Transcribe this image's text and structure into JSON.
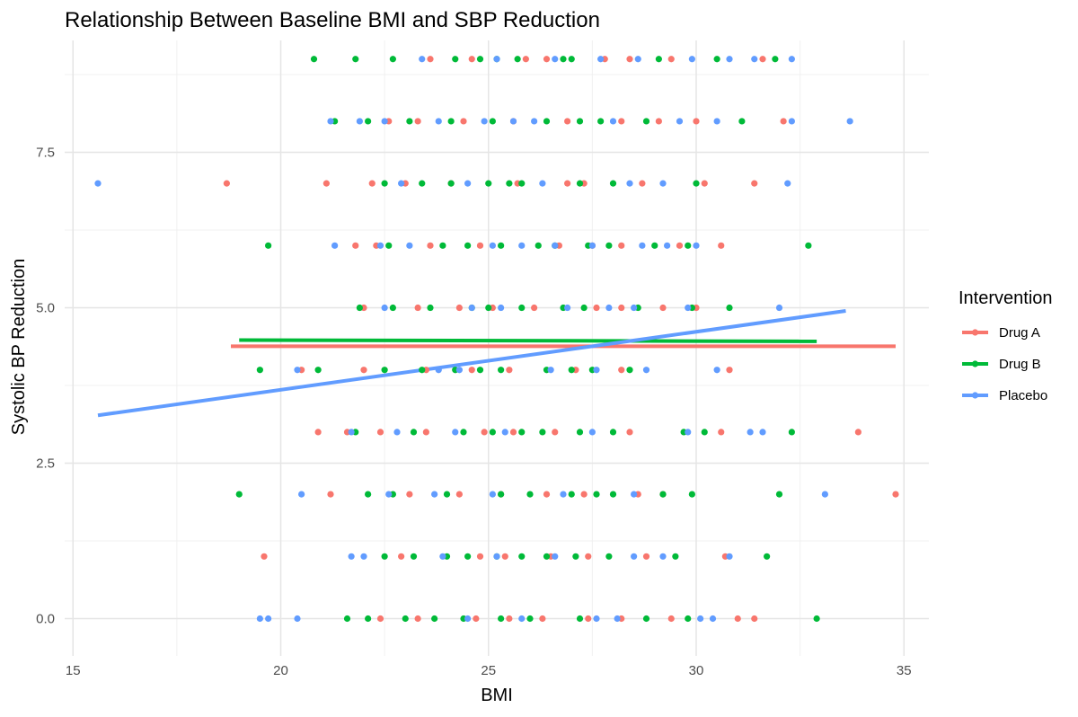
{
  "chart_data": {
    "type": "scatter",
    "title": "Relationship Between Baseline BMI and SBP Reduction",
    "xlabel": "BMI",
    "ylabel": "Systolic BP Reduction",
    "xlim": [
      14.8,
      35.6
    ],
    "ylim": [
      -0.6,
      9.3
    ],
    "x_ticks": [
      15,
      20,
      25,
      30,
      35
    ],
    "y_ticks": [
      0.0,
      2.5,
      5.0,
      7.5
    ],
    "x_tick_labels": [
      "15",
      "20",
      "25",
      "30",
      "35"
    ],
    "y_tick_labels": [
      "0.0",
      "2.5",
      "5.0",
      "7.5"
    ],
    "grid": true,
    "legend": {
      "title": "Intervention",
      "position": "right"
    },
    "series": [
      {
        "name": "Drug A",
        "color": "#F8766D",
        "trend": {
          "x": [
            18.8,
            34.8
          ],
          "y": [
            4.38,
            4.38
          ]
        },
        "points": [
          [
            23.6,
            9
          ],
          [
            24.6,
            9
          ],
          [
            25.9,
            9
          ],
          [
            26.4,
            9
          ],
          [
            27.8,
            9
          ],
          [
            28.4,
            9
          ],
          [
            29.4,
            9
          ],
          [
            31.6,
            9
          ],
          [
            22.6,
            8
          ],
          [
            23.3,
            8
          ],
          [
            24.4,
            8
          ],
          [
            25.6,
            8
          ],
          [
            26.9,
            8
          ],
          [
            28.2,
            8
          ],
          [
            29.1,
            8
          ],
          [
            30.0,
            8
          ],
          [
            32.1,
            8
          ],
          [
            18.7,
            7
          ],
          [
            21.1,
            7
          ],
          [
            22.2,
            7
          ],
          [
            23.0,
            7
          ],
          [
            24.1,
            7
          ],
          [
            25.7,
            7
          ],
          [
            26.9,
            7
          ],
          [
            27.3,
            7
          ],
          [
            28.7,
            7
          ],
          [
            30.2,
            7
          ],
          [
            31.4,
            7
          ],
          [
            21.8,
            6
          ],
          [
            22.3,
            6
          ],
          [
            23.6,
            6
          ],
          [
            24.8,
            6
          ],
          [
            26.7,
            6
          ],
          [
            27.5,
            6
          ],
          [
            28.2,
            6
          ],
          [
            29.6,
            6
          ],
          [
            30.6,
            6
          ],
          [
            22.0,
            5
          ],
          [
            23.3,
            5
          ],
          [
            24.3,
            5
          ],
          [
            25.1,
            5
          ],
          [
            26.1,
            5
          ],
          [
            27.6,
            5
          ],
          [
            28.2,
            5
          ],
          [
            29.2,
            5
          ],
          [
            30.0,
            5
          ],
          [
            20.5,
            4
          ],
          [
            22.0,
            4
          ],
          [
            23.5,
            4
          ],
          [
            24.6,
            4
          ],
          [
            25.5,
            4
          ],
          [
            27.1,
            4
          ],
          [
            28.2,
            4
          ],
          [
            30.8,
            4
          ],
          [
            20.9,
            3
          ],
          [
            21.6,
            3
          ],
          [
            22.4,
            3
          ],
          [
            23.5,
            3
          ],
          [
            24.9,
            3
          ],
          [
            25.6,
            3
          ],
          [
            26.6,
            3
          ],
          [
            28.4,
            3
          ],
          [
            30.6,
            3
          ],
          [
            33.9,
            3
          ],
          [
            21.2,
            2
          ],
          [
            23.1,
            2
          ],
          [
            24.3,
            2
          ],
          [
            25.3,
            2
          ],
          [
            26.4,
            2
          ],
          [
            27.3,
            2
          ],
          [
            28.6,
            2
          ],
          [
            29.2,
            2
          ],
          [
            34.8,
            2
          ],
          [
            19.6,
            1
          ],
          [
            22.9,
            1
          ],
          [
            24.8,
            1
          ],
          [
            25.4,
            1
          ],
          [
            26.5,
            1
          ],
          [
            27.4,
            1
          ],
          [
            28.8,
            1
          ],
          [
            30.7,
            1
          ],
          [
            22.4,
            0
          ],
          [
            23.3,
            0
          ],
          [
            24.7,
            0
          ],
          [
            25.5,
            0
          ],
          [
            26.3,
            0
          ],
          [
            27.4,
            0
          ],
          [
            28.2,
            0
          ],
          [
            29.4,
            0
          ],
          [
            31.0,
            0
          ],
          [
            31.4,
            0
          ]
        ]
      },
      {
        "name": "Drug B",
        "color": "#00BA38",
        "trend": {
          "x": [
            19.0,
            32.9
          ],
          "y": [
            4.48,
            4.46
          ]
        },
        "points": [
          [
            20.8,
            9
          ],
          [
            21.8,
            9
          ],
          [
            22.7,
            9
          ],
          [
            24.2,
            9
          ],
          [
            24.8,
            9
          ],
          [
            25.2,
            9
          ],
          [
            25.7,
            9
          ],
          [
            26.8,
            9
          ],
          [
            27.0,
            9
          ],
          [
            29.1,
            9
          ],
          [
            30.5,
            9
          ],
          [
            31.9,
            9
          ],
          [
            21.3,
            8
          ],
          [
            22.1,
            8
          ],
          [
            23.1,
            8
          ],
          [
            24.1,
            8
          ],
          [
            25.1,
            8
          ],
          [
            26.4,
            8
          ],
          [
            27.2,
            8
          ],
          [
            27.7,
            8
          ],
          [
            28.8,
            8
          ],
          [
            31.1,
            8
          ],
          [
            22.5,
            7
          ],
          [
            23.4,
            7
          ],
          [
            24.1,
            7
          ],
          [
            25.0,
            7
          ],
          [
            25.5,
            7
          ],
          [
            25.8,
            7
          ],
          [
            27.2,
            7
          ],
          [
            28.0,
            7
          ],
          [
            30.0,
            7
          ],
          [
            19.7,
            6
          ],
          [
            22.6,
            6
          ],
          [
            23.9,
            6
          ],
          [
            24.5,
            6
          ],
          [
            25.3,
            6
          ],
          [
            26.2,
            6
          ],
          [
            26.6,
            6
          ],
          [
            27.4,
            6
          ],
          [
            27.9,
            6
          ],
          [
            29.0,
            6
          ],
          [
            29.8,
            6
          ],
          [
            32.7,
            6
          ],
          [
            21.9,
            5
          ],
          [
            22.7,
            5
          ],
          [
            23.6,
            5
          ],
          [
            24.6,
            5
          ],
          [
            25.0,
            5
          ],
          [
            25.8,
            5
          ],
          [
            26.8,
            5
          ],
          [
            27.3,
            5
          ],
          [
            28.6,
            5
          ],
          [
            29.9,
            5
          ],
          [
            30.8,
            5
          ],
          [
            19.5,
            4
          ],
          [
            20.9,
            4
          ],
          [
            22.5,
            4
          ],
          [
            23.4,
            4
          ],
          [
            24.2,
            4
          ],
          [
            24.8,
            4
          ],
          [
            25.3,
            4
          ],
          [
            26.4,
            4
          ],
          [
            27.0,
            4
          ],
          [
            27.5,
            4
          ],
          [
            28.4,
            4
          ],
          [
            21.8,
            3
          ],
          [
            23.2,
            3
          ],
          [
            24.4,
            3
          ],
          [
            25.1,
            3
          ],
          [
            25.8,
            3
          ],
          [
            26.3,
            3
          ],
          [
            27.2,
            3
          ],
          [
            28.0,
            3
          ],
          [
            29.7,
            3
          ],
          [
            30.2,
            3
          ],
          [
            32.3,
            3
          ],
          [
            19.0,
            2
          ],
          [
            22.1,
            2
          ],
          [
            22.7,
            2
          ],
          [
            24.0,
            2
          ],
          [
            25.3,
            2
          ],
          [
            26.0,
            2
          ],
          [
            27.0,
            2
          ],
          [
            27.6,
            2
          ],
          [
            28.0,
            2
          ],
          [
            29.2,
            2
          ],
          [
            29.9,
            2
          ],
          [
            32.0,
            2
          ],
          [
            22.5,
            1
          ],
          [
            23.2,
            1
          ],
          [
            24.0,
            1
          ],
          [
            24.5,
            1
          ],
          [
            25.2,
            1
          ],
          [
            25.8,
            1
          ],
          [
            26.4,
            1
          ],
          [
            27.1,
            1
          ],
          [
            27.9,
            1
          ],
          [
            29.5,
            1
          ],
          [
            31.7,
            1
          ],
          [
            21.6,
            0
          ],
          [
            22.1,
            0
          ],
          [
            23.0,
            0
          ],
          [
            23.7,
            0
          ],
          [
            24.4,
            0
          ],
          [
            25.3,
            0
          ],
          [
            26.0,
            0
          ],
          [
            27.2,
            0
          ],
          [
            28.8,
            0
          ],
          [
            29.8,
            0
          ],
          [
            32.9,
            0
          ]
        ]
      },
      {
        "name": "Placebo",
        "color": "#619CFF",
        "trend": {
          "x": [
            15.6,
            33.6
          ],
          "y": [
            3.27,
            4.95
          ]
        },
        "points": [
          [
            23.4,
            9
          ],
          [
            25.2,
            9
          ],
          [
            26.6,
            9
          ],
          [
            27.7,
            9
          ],
          [
            28.6,
            9
          ],
          [
            29.9,
            9
          ],
          [
            30.8,
            9
          ],
          [
            31.4,
            9
          ],
          [
            32.3,
            9
          ],
          [
            21.2,
            8
          ],
          [
            21.9,
            8
          ],
          [
            22.5,
            8
          ],
          [
            23.8,
            8
          ],
          [
            24.9,
            8
          ],
          [
            25.6,
            8
          ],
          [
            26.1,
            8
          ],
          [
            28.0,
            8
          ],
          [
            29.6,
            8
          ],
          [
            30.5,
            8
          ],
          [
            32.3,
            8
          ],
          [
            33.7,
            8
          ],
          [
            15.6,
            7
          ],
          [
            22.9,
            7
          ],
          [
            24.5,
            7
          ],
          [
            26.3,
            7
          ],
          [
            28.4,
            7
          ],
          [
            29.2,
            7
          ],
          [
            32.2,
            7
          ],
          [
            21.3,
            6
          ],
          [
            22.4,
            6
          ],
          [
            23.1,
            6
          ],
          [
            25.1,
            6
          ],
          [
            25.8,
            6
          ],
          [
            26.6,
            6
          ],
          [
            27.5,
            6
          ],
          [
            28.7,
            6
          ],
          [
            29.3,
            6
          ],
          [
            30.0,
            6
          ],
          [
            22.5,
            5
          ],
          [
            24.6,
            5
          ],
          [
            25.3,
            5
          ],
          [
            26.9,
            5
          ],
          [
            27.9,
            5
          ],
          [
            28.5,
            5
          ],
          [
            29.8,
            5
          ],
          [
            32.0,
            5
          ],
          [
            20.4,
            4
          ],
          [
            23.8,
            4
          ],
          [
            24.3,
            4
          ],
          [
            26.5,
            4
          ],
          [
            27.6,
            4
          ],
          [
            28.8,
            4
          ],
          [
            30.5,
            4
          ],
          [
            21.7,
            3
          ],
          [
            22.8,
            3
          ],
          [
            24.2,
            3
          ],
          [
            25.4,
            3
          ],
          [
            27.5,
            3
          ],
          [
            29.8,
            3
          ],
          [
            31.3,
            3
          ],
          [
            31.6,
            3
          ],
          [
            20.5,
            2
          ],
          [
            22.6,
            2
          ],
          [
            23.7,
            2
          ],
          [
            25.1,
            2
          ],
          [
            26.8,
            2
          ],
          [
            28.5,
            2
          ],
          [
            33.1,
            2
          ],
          [
            21.7,
            1
          ],
          [
            22.0,
            1
          ],
          [
            23.9,
            1
          ],
          [
            25.2,
            1
          ],
          [
            26.6,
            1
          ],
          [
            28.5,
            1
          ],
          [
            29.2,
            1
          ],
          [
            30.8,
            1
          ],
          [
            19.5,
            0
          ],
          [
            19.7,
            0
          ],
          [
            20.4,
            0
          ],
          [
            24.5,
            0
          ],
          [
            25.8,
            0
          ],
          [
            27.6,
            0
          ],
          [
            28.1,
            0
          ],
          [
            30.1,
            0
          ],
          [
            30.4,
            0
          ]
        ]
      }
    ]
  }
}
